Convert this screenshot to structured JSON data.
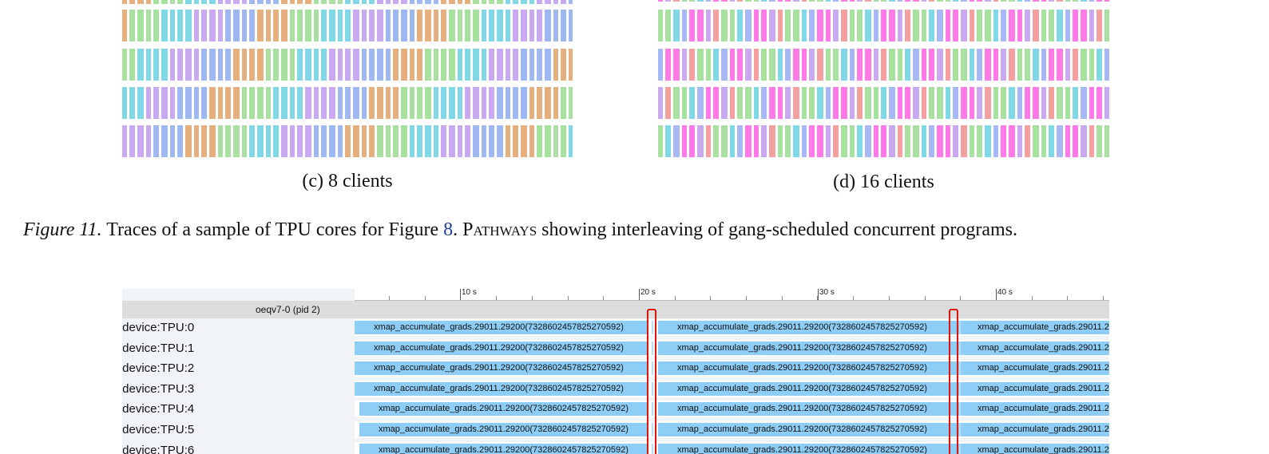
{
  "subfigures": [
    {
      "id": "c",
      "caption": "(c) 8 clients",
      "palette": [
        "#e6b07e",
        "#a8e0a0",
        "#80d8e6",
        "#c9a9f0",
        "#9fb8f2"
      ],
      "rows": 5
    },
    {
      "id": "d",
      "caption": "(d) 16 clients",
      "palette": [
        "#ff7ae6",
        "#a8b8f5",
        "#80d8e6",
        "#a8e0a0",
        "#f5a0a0",
        "#c9a9f0"
      ],
      "rows": 5
    }
  ],
  "caption": {
    "label": "Figure 11.",
    "text_before_ref": "Traces of a sample of TPU cores for Figure",
    "ref": "8",
    "text_after_ref": ".",
    "system_name": "Pathways",
    "text_end": "showing interleaving of gang-scheduled concurrent programs."
  },
  "profiler": {
    "process_name": "oeqv7-0 (pid 2)",
    "time_ticks": [
      "10 s",
      "20 s",
      "30 s",
      "40 s"
    ],
    "devices": [
      "/device:TPU:0",
      "/device:TPU:1",
      "/device:TPU:2",
      "/device:TPU:3",
      "/device:TPU:4",
      "/device:TPU:5",
      "/device:TPU:6"
    ],
    "op_name": "xmap_accumulate_grads.29011.29200(7328602457825270592)",
    "op_color": "#8ecdf5",
    "highlight_color": "#e0140f"
  }
}
